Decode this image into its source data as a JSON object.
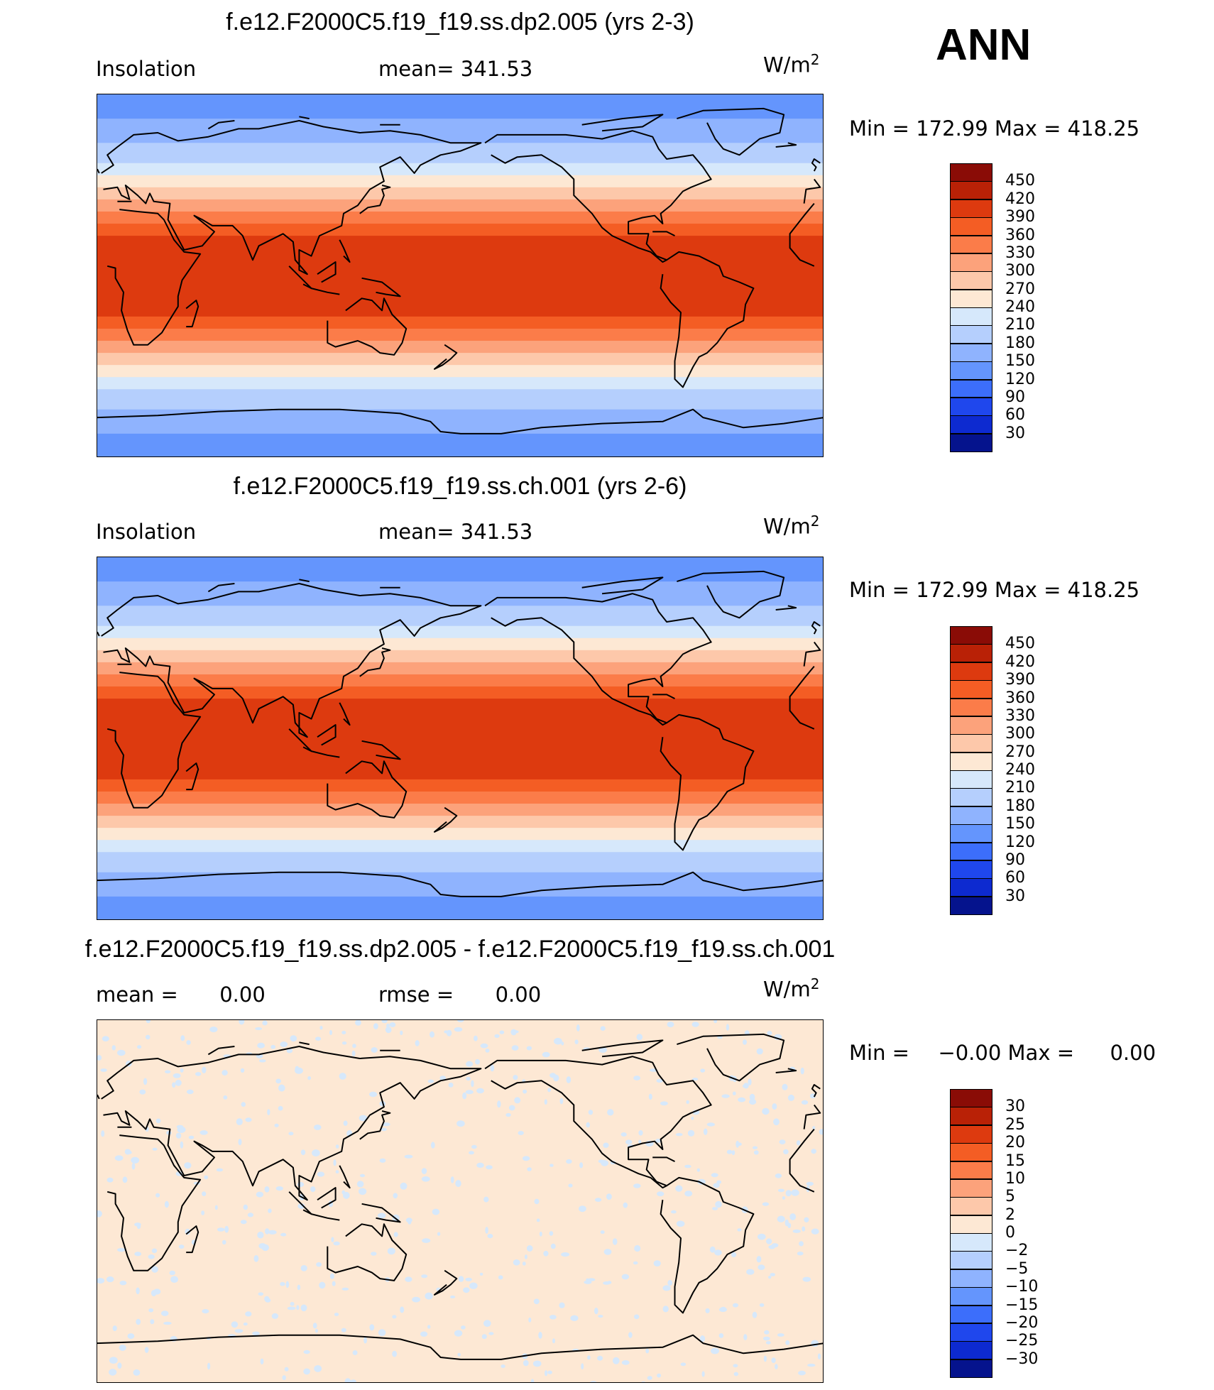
{
  "season": "ANN",
  "panels": [
    {
      "title": "f.e12.F2000C5.f19_f19.ss.dp2.005 (yrs 2-3)",
      "variable": "Insolation",
      "stat1_label": "mean=",
      "stat1_value": "341.53",
      "unit_base": "W/m",
      "unit_exp": "2",
      "min_label": "Min",
      "min_value": "172.99",
      "max_label": "Max",
      "max_value": "418.25",
      "field": "insolation",
      "colorbar": {
        "labels": [
          "450",
          "420",
          "390",
          "360",
          "330",
          "300",
          "270",
          "240",
          "210",
          "180",
          "150",
          "120",
          "90",
          "60",
          "30"
        ],
        "colors": [
          "#8a0c06",
          "#b92106",
          "#dd3a0f",
          "#f45d24",
          "#fb7c49",
          "#fca27b",
          "#fdc8aa",
          "#fde8d4",
          "#d6e8fb",
          "#b5cffd",
          "#8fb3fe",
          "#6495fd",
          "#3c6efb",
          "#1f47ed",
          "#0d2ad0",
          "#05138d"
        ]
      }
    },
    {
      "title": "f.e12.F2000C5.f19_f19.ss.ch.001 (yrs 2-6)",
      "variable": "Insolation",
      "stat1_label": "mean=",
      "stat1_value": "341.53",
      "unit_base": "W/m",
      "unit_exp": "2",
      "min_label": "Min",
      "min_value": "172.99",
      "max_label": "Max",
      "max_value": "418.25",
      "field": "insolation",
      "colorbar": {
        "labels": [
          "450",
          "420",
          "390",
          "360",
          "330",
          "300",
          "270",
          "240",
          "210",
          "180",
          "150",
          "120",
          "90",
          "60",
          "30"
        ],
        "colors": [
          "#8a0c06",
          "#b92106",
          "#dd3a0f",
          "#f45d24",
          "#fb7c49",
          "#fca27b",
          "#fdc8aa",
          "#fde8d4",
          "#d6e8fb",
          "#b5cffd",
          "#8fb3fe",
          "#6495fd",
          "#3c6efb",
          "#1f47ed",
          "#0d2ad0",
          "#05138d"
        ]
      }
    },
    {
      "title": "f.e12.F2000C5.f19_f19.ss.dp2.005 - f.e12.F2000C5.f19_f19.ss.ch.001",
      "variable": "",
      "stat1_label": "mean =",
      "stat1_value": "0.00",
      "stat2_label": "rmse =",
      "stat2_value": "0.00",
      "unit_base": "W/m",
      "unit_exp": "2",
      "min_label": "Min",
      "min_value": "−0.00",
      "max_label": "Max",
      "max_value": "0.00",
      "field": "difference",
      "colorbar": {
        "labels": [
          "30",
          "25",
          "20",
          "15",
          "10",
          "5",
          "2",
          "0",
          "−2",
          "−5",
          "−10",
          "−15",
          "−20",
          "−25",
          "−30"
        ],
        "colors": [
          "#8a0c06",
          "#b92106",
          "#dd3a0f",
          "#f45d24",
          "#fb7c49",
          "#fca27b",
          "#fdc8aa",
          "#fde8d4",
          "#d6e8fb",
          "#b5cffd",
          "#8fb3fe",
          "#6495fd",
          "#3c6efb",
          "#1f47ed",
          "#0d2ad0",
          "#05138d"
        ]
      }
    }
  ]
}
